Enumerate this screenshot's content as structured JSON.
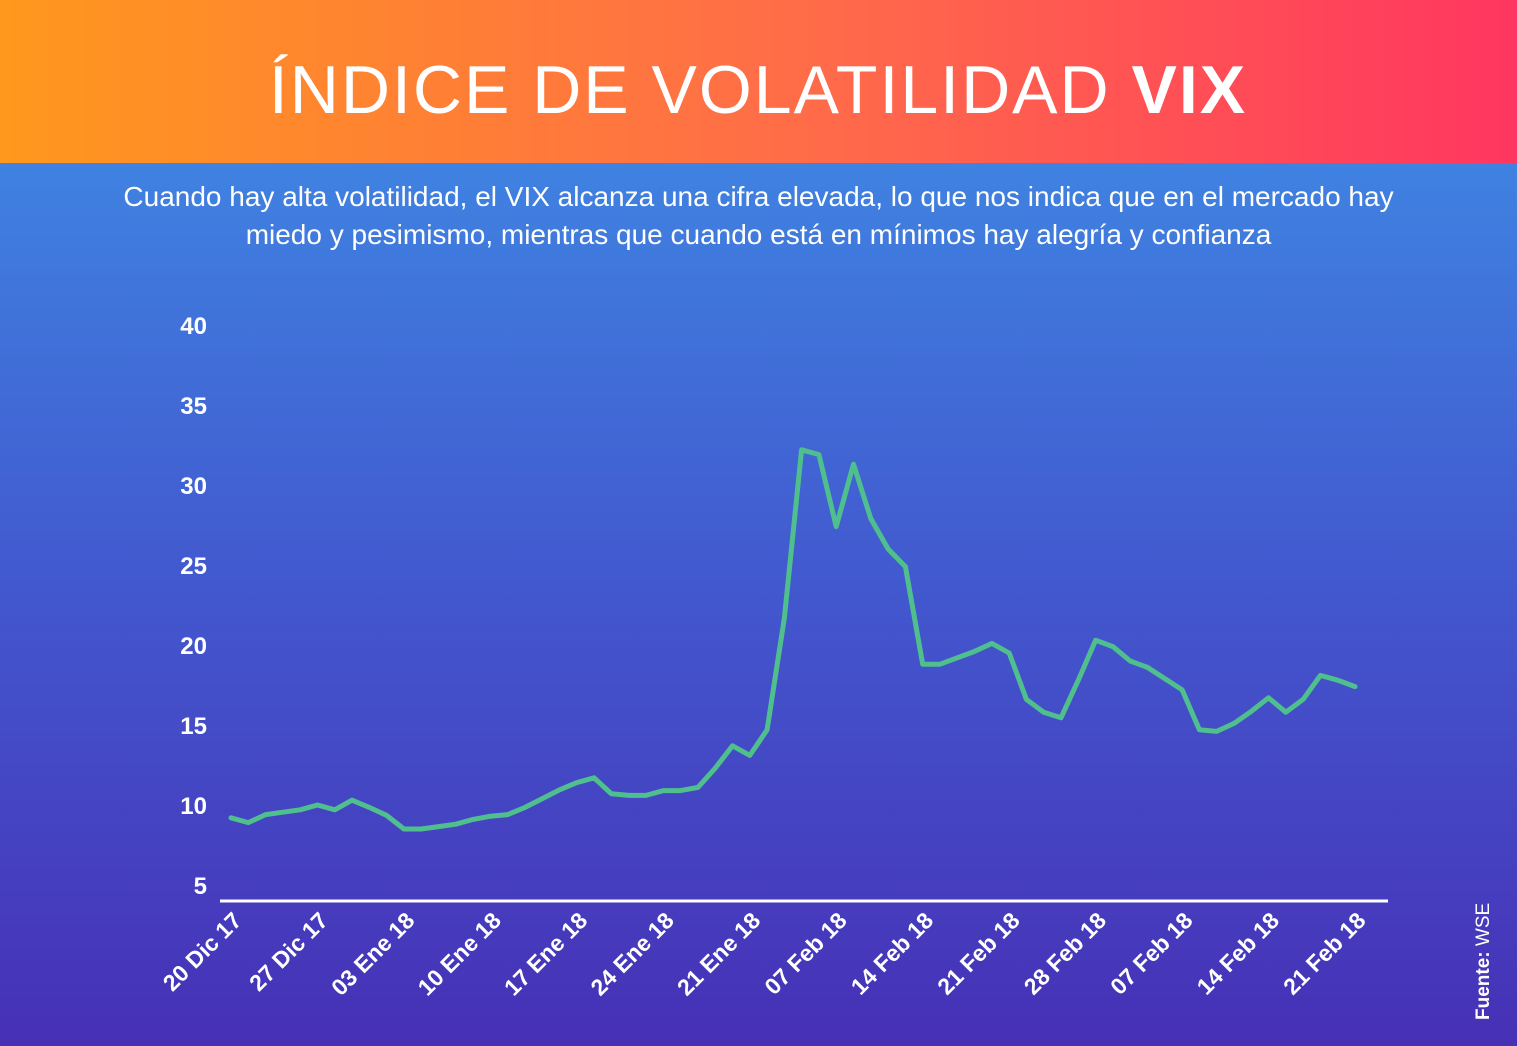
{
  "chart_data": {
    "type": "line",
    "title": "ÍNDICE DE VOLATILIDAD",
    "title_highlight": "VIX",
    "subtitle": "Cuando hay alta volatilidad, el VIX alcanza una cifra elevada, lo que nos indica que en el mercado hay miedo y pesimismo, mientras que cuando está en mínimos hay alegría y confianza",
    "source_label": "Fuente:",
    "source": "WSE",
    "categories": [
      "20 Dic 17",
      null,
      null,
      null,
      null,
      "27 Dic 17",
      null,
      null,
      null,
      null,
      "03 Ene 18",
      null,
      null,
      null,
      null,
      "10 Ene 18",
      null,
      null,
      null,
      null,
      "17 Ene 18",
      null,
      null,
      null,
      null,
      "24 Ene 18",
      null,
      null,
      null,
      null,
      "21 Ene 18",
      null,
      null,
      null,
      null,
      "07 Feb 18",
      null,
      null,
      null,
      null,
      "14 Feb 18",
      null,
      null,
      null,
      null,
      "21 Feb 18",
      null,
      null,
      null,
      null,
      "28 Feb 18",
      null,
      null,
      null,
      null,
      "07 Feb 18",
      null,
      null,
      null,
      null,
      "14 Feb 18",
      null,
      null,
      null,
      null,
      "21 Feb 18"
    ],
    "series": [
      {
        "name": "VIX",
        "color": "#4fc08d",
        "values": [
          9.2,
          8.9,
          9.4,
          9.55,
          9.7,
          10.0,
          9.7,
          10.3,
          9.85,
          9.35,
          8.5,
          8.5,
          8.65,
          8.8,
          9.1,
          9.3,
          9.4,
          9.85,
          10.4,
          10.95,
          11.4,
          11.7,
          10.7,
          10.6,
          10.6,
          10.9,
          10.9,
          11.1,
          12.3,
          13.7,
          13.1,
          14.7,
          21.7,
          32.2,
          31.9,
          27.4,
          31.3,
          27.9,
          26.0,
          24.9,
          18.8,
          18.8,
          19.2,
          19.6,
          20.1,
          19.5,
          16.6,
          15.8,
          15.45,
          17.8,
          20.3,
          19.9,
          19.0,
          18.6,
          17.9,
          17.2,
          14.7,
          14.6,
          15.1,
          15.85,
          16.7,
          15.8,
          16.6,
          18.1,
          17.8,
          17.4
        ]
      }
    ],
    "ylim": [
      4,
      40
    ],
    "yticks": [
      5,
      10,
      15,
      20,
      25,
      30,
      35,
      40
    ],
    "grid": false
  }
}
